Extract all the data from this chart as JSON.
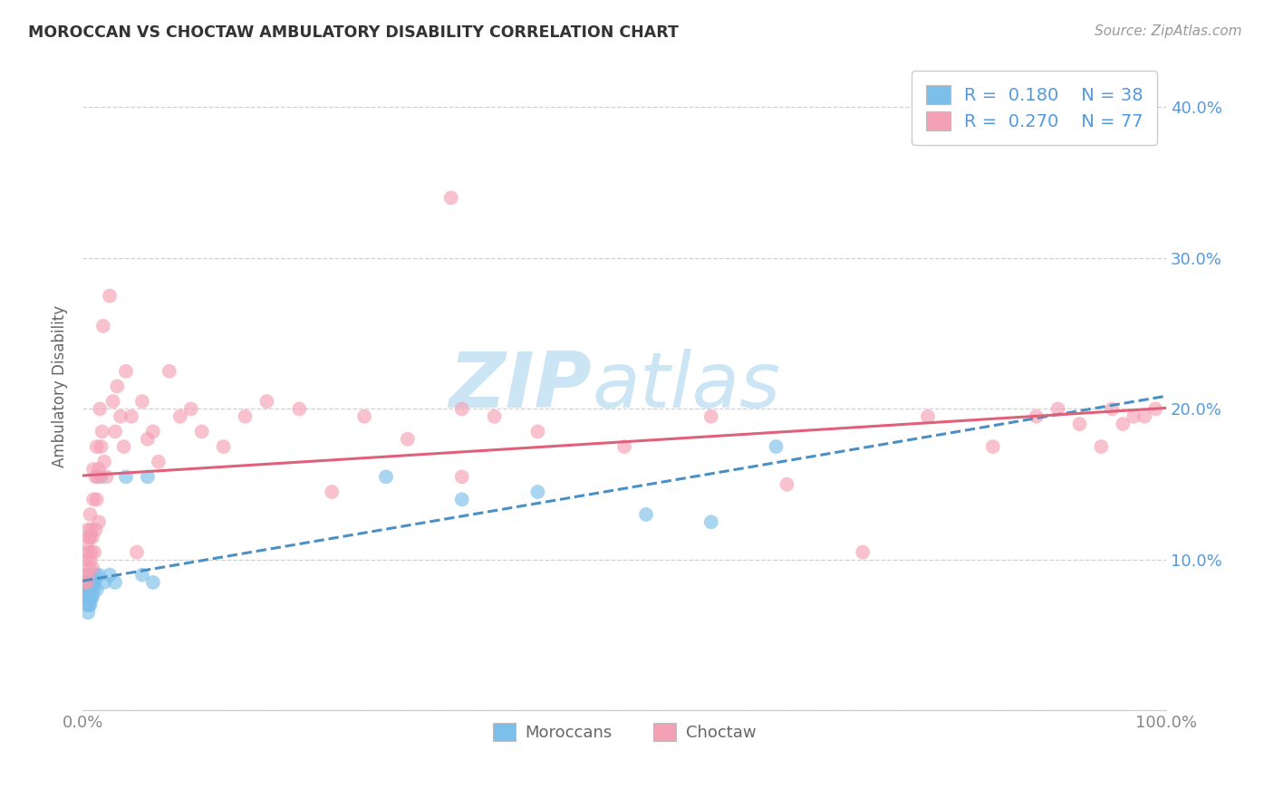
{
  "title": "MOROCCAN VS CHOCTAW AMBULATORY DISABILITY CORRELATION CHART",
  "source": "Source: ZipAtlas.com",
  "ylabel": "Ambulatory Disability",
  "xlim": [
    0.0,
    1.0
  ],
  "ylim": [
    0.0,
    0.43
  ],
  "moroccan_R": 0.18,
  "moroccan_N": 38,
  "choctaw_R": 0.27,
  "choctaw_N": 77,
  "moroccan_color": "#7bbfea",
  "choctaw_color": "#f4a0b5",
  "moroccan_line_color": "#4a90c4",
  "choctaw_line_color": "#e0607a",
  "moroccan_line_style": "dashed",
  "choctaw_line_style": "solid",
  "background_color": "#ffffff",
  "watermark_color": "#cce5f5",
  "title_color": "#333333",
  "source_color": "#999999",
  "ylabel_color": "#666666",
  "ytick_color": "#5599dd",
  "xtick_color": "#888888",
  "legend_text_color": "#5599dd",
  "bottom_legend_color": "#666666",
  "grid_color": "#cccccc",
  "moroccan_x": [
    0.003,
    0.004,
    0.004,
    0.005,
    0.005,
    0.005,
    0.005,
    0.006,
    0.006,
    0.006,
    0.007,
    0.007,
    0.007,
    0.008,
    0.008,
    0.008,
    0.009,
    0.009,
    0.01,
    0.01,
    0.011,
    0.012,
    0.013,
    0.015,
    0.017,
    0.02,
    0.025,
    0.03,
    0.04,
    0.055,
    0.06,
    0.065,
    0.28,
    0.35,
    0.42,
    0.52,
    0.58,
    0.64
  ],
  "moroccan_y": [
    0.075,
    0.07,
    0.08,
    0.065,
    0.075,
    0.08,
    0.085,
    0.07,
    0.075,
    0.08,
    0.07,
    0.075,
    0.085,
    0.075,
    0.08,
    0.09,
    0.075,
    0.085,
    0.08,
    0.085,
    0.085,
    0.09,
    0.08,
    0.09,
    0.155,
    0.085,
    0.09,
    0.085,
    0.155,
    0.09,
    0.155,
    0.085,
    0.155,
    0.14,
    0.145,
    0.13,
    0.125,
    0.175
  ],
  "choctaw_x": [
    0.002,
    0.003,
    0.003,
    0.004,
    0.004,
    0.005,
    0.005,
    0.005,
    0.006,
    0.006,
    0.007,
    0.007,
    0.007,
    0.008,
    0.008,
    0.009,
    0.009,
    0.01,
    0.01,
    0.011,
    0.012,
    0.012,
    0.013,
    0.013,
    0.014,
    0.015,
    0.015,
    0.016,
    0.017,
    0.018,
    0.019,
    0.02,
    0.022,
    0.025,
    0.028,
    0.03,
    0.032,
    0.035,
    0.038,
    0.04,
    0.045,
    0.05,
    0.055,
    0.06,
    0.065,
    0.07,
    0.08,
    0.09,
    0.1,
    0.11,
    0.13,
    0.15,
    0.17,
    0.2,
    0.23,
    0.26,
    0.3,
    0.35,
    0.34,
    0.38,
    0.35,
    0.42,
    0.5,
    0.58,
    0.65,
    0.72,
    0.78,
    0.84,
    0.88,
    0.9,
    0.92,
    0.94,
    0.95,
    0.96,
    0.97,
    0.98,
    0.99
  ],
  "choctaw_y": [
    0.085,
    0.09,
    0.1,
    0.085,
    0.11,
    0.09,
    0.105,
    0.12,
    0.095,
    0.115,
    0.1,
    0.115,
    0.13,
    0.105,
    0.12,
    0.095,
    0.115,
    0.14,
    0.16,
    0.105,
    0.12,
    0.155,
    0.175,
    0.14,
    0.155,
    0.125,
    0.16,
    0.2,
    0.175,
    0.185,
    0.255,
    0.165,
    0.155,
    0.275,
    0.205,
    0.185,
    0.215,
    0.195,
    0.175,
    0.225,
    0.195,
    0.105,
    0.205,
    0.18,
    0.185,
    0.165,
    0.225,
    0.195,
    0.2,
    0.185,
    0.175,
    0.195,
    0.205,
    0.2,
    0.145,
    0.195,
    0.18,
    0.155,
    0.34,
    0.195,
    0.2,
    0.185,
    0.175,
    0.195,
    0.15,
    0.105,
    0.195,
    0.175,
    0.195,
    0.2,
    0.19,
    0.175,
    0.2,
    0.19,
    0.195,
    0.195,
    0.2
  ]
}
